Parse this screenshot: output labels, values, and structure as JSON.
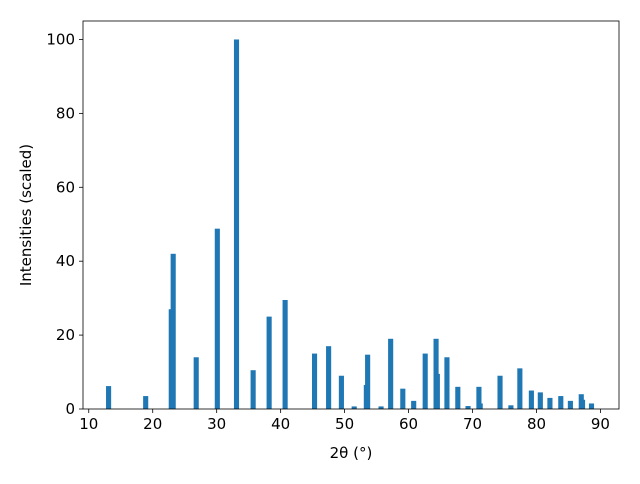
{
  "chart_data": {
    "type": "bar",
    "xlabel": "2θ (°)",
    "ylabel": "Intensities (scaled)",
    "x": [
      13.1,
      18.9,
      22.9,
      23.2,
      26.8,
      30.1,
      33.1,
      35.7,
      38.2,
      40.7,
      45.3,
      47.5,
      49.5,
      51.5,
      53.4,
      53.6,
      55.7,
      57.2,
      59.1,
      60.8,
      62.6,
      64.3,
      64.5,
      66.0,
      67.7,
      69.3,
      71.0,
      71.2,
      74.3,
      76.0,
      77.4,
      79.2,
      80.6,
      82.1,
      83.8,
      85.3,
      87.0,
      87.2,
      88.6
    ],
    "values": [
      6.2,
      3.5,
      27,
      42,
      14,
      48.8,
      100,
      10.5,
      25,
      29.5,
      15,
      17,
      9,
      0.7,
      6.5,
      14.7,
      0.7,
      19,
      5.5,
      2.2,
      15,
      19,
      9.5,
      14,
      6,
      0.8,
      6,
      1.5,
      9,
      1,
      11,
      5,
      4.5,
      3,
      3.5,
      2.2,
      4,
      2.5,
      1.5
    ],
    "color": "#1f77b4",
    "xlim": [
      9.1,
      92.9
    ],
    "ylim": [
      0,
      105
    ],
    "xticks": [
      10,
      20,
      30,
      40,
      50,
      60,
      70,
      80,
      90
    ],
    "yticks": [
      0,
      20,
      40,
      60,
      80,
      100
    ]
  }
}
